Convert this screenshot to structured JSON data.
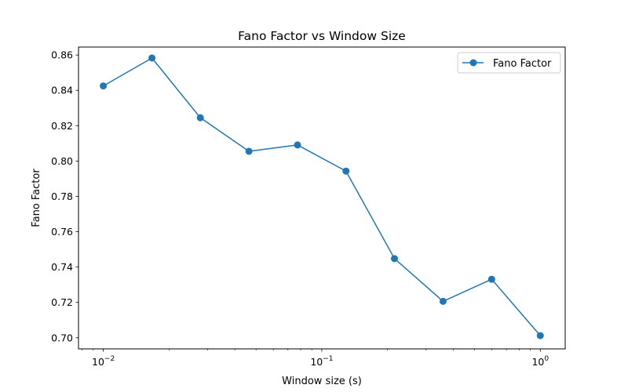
{
  "chart_data": {
    "type": "line",
    "title": "Fano Factor vs Window Size",
    "xlabel": "Window size (s)",
    "ylabel": "Fano Factor",
    "xscale": "log",
    "xlim": [
      0.0077,
      1.3
    ],
    "ylim": [
      0.6937,
      0.8645
    ],
    "x_ticks": [
      {
        "value": 0.01,
        "base": "10",
        "exp": "−2"
      },
      {
        "value": 0.1,
        "base": "10",
        "exp": "−1"
      },
      {
        "value": 1,
        "base": "10",
        "exp": "0"
      }
    ],
    "y_ticks": [
      0.7,
      0.72,
      0.74,
      0.76,
      0.78,
      0.8,
      0.82,
      0.84,
      0.86
    ],
    "y_tick_labels": [
      "0.70",
      "0.72",
      "0.74",
      "0.76",
      "0.78",
      "0.80",
      "0.82",
      "0.84",
      "0.86"
    ],
    "grid": false,
    "legend_position": "top-right",
    "series": [
      {
        "name": "Fano Factor",
        "color": "#1f77b4",
        "marker": "circle",
        "x": [
          0.01,
          0.0167,
          0.0278,
          0.0464,
          0.0774,
          0.129,
          0.215,
          0.359,
          0.599,
          1.0
        ],
        "y": [
          0.8425,
          0.8583,
          0.8245,
          0.8055,
          0.8091,
          0.7943,
          0.7448,
          0.7206,
          0.7331,
          0.7012
        ]
      }
    ]
  }
}
